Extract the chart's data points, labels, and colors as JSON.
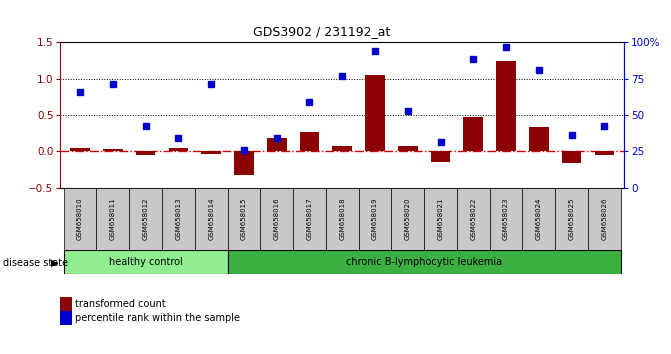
{
  "title": "GDS3902 / 231192_at",
  "samples": [
    "GSM658010",
    "GSM658011",
    "GSM658012",
    "GSM658013",
    "GSM658014",
    "GSM658015",
    "GSM658016",
    "GSM658017",
    "GSM658018",
    "GSM658019",
    "GSM658020",
    "GSM658021",
    "GSM658022",
    "GSM658023",
    "GSM658024",
    "GSM658025",
    "GSM658026"
  ],
  "bar_values": [
    0.04,
    0.03,
    -0.05,
    0.04,
    -0.03,
    -0.32,
    0.19,
    0.27,
    0.07,
    1.05,
    0.08,
    -0.15,
    0.47,
    1.24,
    0.34,
    -0.16,
    -0.05
  ],
  "dot_values": [
    0.82,
    0.93,
    0.35,
    0.19,
    0.93,
    0.02,
    0.19,
    0.68,
    1.04,
    1.38,
    0.55,
    0.13,
    1.27,
    1.44,
    1.12,
    0.23,
    0.35
  ],
  "bar_color": "#8B0000",
  "dot_color": "#0000CD",
  "zero_line_color": "#CC0000",
  "ylim_left": [
    -0.5,
    1.5
  ],
  "ylim_right": [
    0,
    100
  ],
  "yticks_left": [
    -0.5,
    0.0,
    0.5,
    1.0,
    1.5
  ],
  "yticks_right": [
    0,
    25,
    50,
    75,
    100
  ],
  "hlines": [
    0.5,
    1.0
  ],
  "healthy_control_count": 5,
  "healthy_control_label": "healthy control",
  "leukemia_label": "chronic B-lymphocytic leukemia",
  "disease_state_label": "disease state",
  "legend_bar_label": "transformed count",
  "legend_dot_label": "percentile rank within the sample",
  "healthy_color": "#90EE90",
  "leukemia_color": "#3CB043",
  "sample_box_color": "#C8C8C8",
  "background_color": "#FFFFFF"
}
